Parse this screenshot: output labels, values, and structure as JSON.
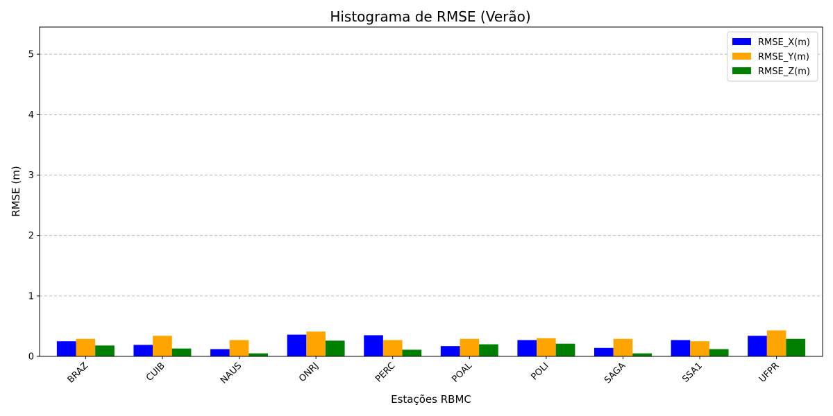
{
  "chart_data": {
    "type": "bar",
    "title": "Histograma de RMSE (Verão)",
    "xlabel": "Estações RBMC",
    "ylabel": "RMSE (m)",
    "categories": [
      "BRAZ",
      "CUIB",
      "NAUS",
      "ONRJ",
      "PERC",
      "POAL",
      "POLI",
      "SAGA",
      "SSA1",
      "UFPR"
    ],
    "series": [
      {
        "name": "RMSE_X(m)",
        "color": "#0000ff",
        "values": [
          0.25,
          0.19,
          0.12,
          0.36,
          0.35,
          0.17,
          0.27,
          0.14,
          0.27,
          0.34
        ]
      },
      {
        "name": "RMSE_Y(m)",
        "color": "#ffa500",
        "values": [
          0.29,
          0.34,
          0.27,
          0.41,
          0.27,
          0.29,
          0.3,
          0.29,
          0.25,
          0.43
        ]
      },
      {
        "name": "RMSE_Z(m)",
        "color": "#008000",
        "values": [
          0.18,
          0.13,
          0.05,
          0.26,
          0.11,
          0.2,
          0.21,
          0.05,
          0.12,
          0.29
        ]
      }
    ],
    "ylim": [
      0,
      5.45
    ],
    "yticks": [
      0,
      1,
      2,
      3,
      4,
      5
    ],
    "grid": "y-dashed",
    "legend": "top-right",
    "xtick_rotation": 45
  }
}
